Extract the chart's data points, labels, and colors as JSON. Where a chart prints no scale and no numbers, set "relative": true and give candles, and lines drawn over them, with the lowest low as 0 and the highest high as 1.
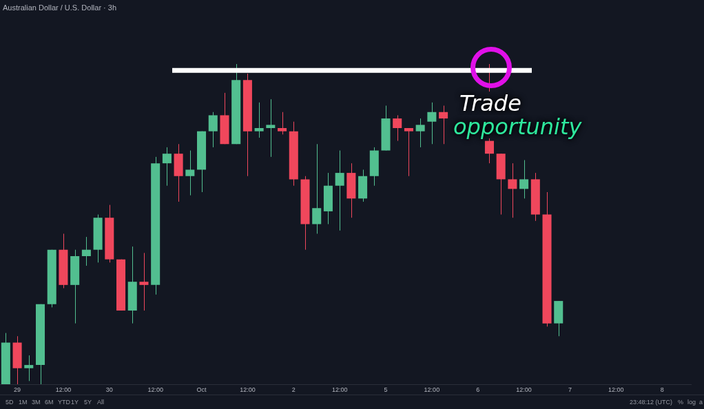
{
  "chart_data": {
    "type": "candlestick",
    "title": "Australian Dollar / U.S. Dollar · 3h",
    "relative": true,
    "tick_labels": "x",
    "categories": [
      null,
      "29",
      null,
      null,
      null,
      "12:00",
      null,
      null,
      null,
      "30",
      null,
      null,
      null,
      "12:00",
      null,
      null,
      null,
      "Oct",
      null,
      null,
      null,
      "12:00",
      null,
      null,
      null,
      "2",
      null,
      null,
      null,
      "12:00",
      null,
      null,
      null,
      "5",
      null,
      null,
      null,
      "12:00",
      null,
      null,
      null,
      "6",
      null,
      null,
      null,
      "12:00",
      null,
      null,
      null,
      "7",
      null,
      null,
      null,
      "12:00",
      null,
      null,
      null,
      "8",
      null,
      null
    ],
    "ohlc": [
      [
        0.0,
        0.16,
        0.0,
        0.13
      ],
      [
        0.13,
        0.15,
        0.0,
        0.05
      ],
      [
        0.05,
        0.09,
        0.01,
        0.06
      ],
      [
        0.06,
        0.25,
        0.0,
        0.25
      ],
      [
        0.25,
        0.42,
        0.24,
        0.42
      ],
      [
        0.42,
        0.47,
        0.3,
        0.31
      ],
      [
        0.31,
        0.42,
        0.19,
        0.4
      ],
      [
        0.4,
        0.46,
        0.37,
        0.42
      ],
      [
        0.42,
        0.53,
        0.38,
        0.52
      ],
      [
        0.52,
        0.56,
        0.38,
        0.39
      ],
      [
        0.39,
        0.39,
        0.23,
        0.23
      ],
      [
        0.23,
        0.43,
        0.19,
        0.32
      ],
      [
        0.32,
        0.41,
        0.23,
        0.31
      ],
      [
        0.31,
        0.71,
        0.28,
        0.69
      ],
      [
        0.69,
        0.74,
        0.62,
        0.72
      ],
      [
        0.72,
        0.75,
        0.57,
        0.65
      ],
      [
        0.65,
        0.73,
        0.59,
        0.67
      ],
      [
        0.67,
        0.79,
        0.6,
        0.79
      ],
      [
        0.79,
        0.85,
        0.74,
        0.84
      ],
      [
        0.84,
        0.91,
        0.75,
        0.75
      ],
      [
        0.75,
        1.0,
        0.75,
        0.95
      ],
      [
        0.95,
        0.97,
        0.65,
        0.79
      ],
      [
        0.79,
        0.88,
        0.77,
        0.8
      ],
      [
        0.8,
        0.89,
        0.71,
        0.81
      ],
      [
        0.8,
        0.85,
        0.78,
        0.79
      ],
      [
        0.79,
        0.82,
        0.62,
        0.64
      ],
      [
        0.64,
        0.65,
        0.42,
        0.5
      ],
      [
        0.5,
        0.75,
        0.47,
        0.55
      ],
      [
        0.54,
        0.66,
        0.5,
        0.62
      ],
      [
        0.62,
        0.73,
        0.48,
        0.66
      ],
      [
        0.66,
        0.69,
        0.52,
        0.58
      ],
      [
        0.58,
        0.67,
        0.57,
        0.65
      ],
      [
        0.65,
        0.74,
        0.62,
        0.73
      ],
      [
        0.73,
        0.87,
        0.73,
        0.83
      ],
      [
        0.83,
        0.84,
        0.76,
        0.8
      ],
      [
        0.8,
        0.8,
        0.65,
        0.79
      ],
      [
        0.79,
        0.83,
        0.74,
        0.81
      ],
      [
        0.82,
        0.88,
        0.75,
        0.85
      ],
      [
        0.85,
        0.87,
        0.75,
        0.83
      ],
      null,
      null,
      null,
      [
        0.76,
        1.0,
        0.69,
        0.72
      ],
      [
        0.72,
        0.72,
        0.53,
        0.64
      ],
      [
        0.64,
        0.69,
        0.52,
        0.61
      ],
      [
        0.61,
        0.7,
        0.58,
        0.64
      ],
      [
        0.64,
        0.66,
        0.51,
        0.53
      ],
      [
        0.53,
        0.6,
        0.18,
        0.19
      ],
      [
        0.19,
        0.26,
        0.15,
        0.26
      ],
      null,
      null,
      null,
      null,
      null,
      null,
      null,
      null,
      null,
      null,
      null
    ],
    "colors": [
      "#52bf90",
      "#f0475c",
      "#52bf90",
      "#52bf90",
      "#52bf90",
      "#f0475c",
      "#52bf90",
      "#52bf90",
      "#52bf90",
      "#f0475c",
      "#f0475c",
      "#52bf90",
      "#f0475c",
      "#52bf90",
      "#52bf90",
      "#f0475c",
      "#52bf90",
      "#52bf90",
      "#52bf90",
      "#f0475c",
      "#52bf90",
      "#f0475c",
      "#52bf90",
      "#52bf90",
      "#f0475c",
      "#f0475c",
      "#f0475c",
      "#52bf90",
      "#52bf90",
      "#52bf90",
      "#f0475c",
      "#52bf90",
      "#52bf90",
      "#52bf90",
      "#f0475c",
      "#f0475c",
      "#52bf90",
      "#52bf90",
      "#f0475c",
      null,
      null,
      null,
      "#f0475c",
      "#f0475c",
      "#f0475c",
      "#52bf90",
      "#f0475c",
      "#f0475c",
      "#52bf90",
      null,
      null,
      null,
      null,
      null,
      null,
      null,
      null,
      null,
      null,
      null
    ],
    "ref_lines": [
      {
        "axis": "y",
        "value": 0.98,
        "color": "#ffffff"
      }
    ],
    "annotations": [
      "Trade",
      "opportunity",
      "5D",
      "1M",
      "3M",
      "6M",
      "YTD",
      "1Y",
      "5Y",
      "All",
      "23:48:12 (UTC)",
      "%",
      "log",
      "a"
    ]
  }
}
